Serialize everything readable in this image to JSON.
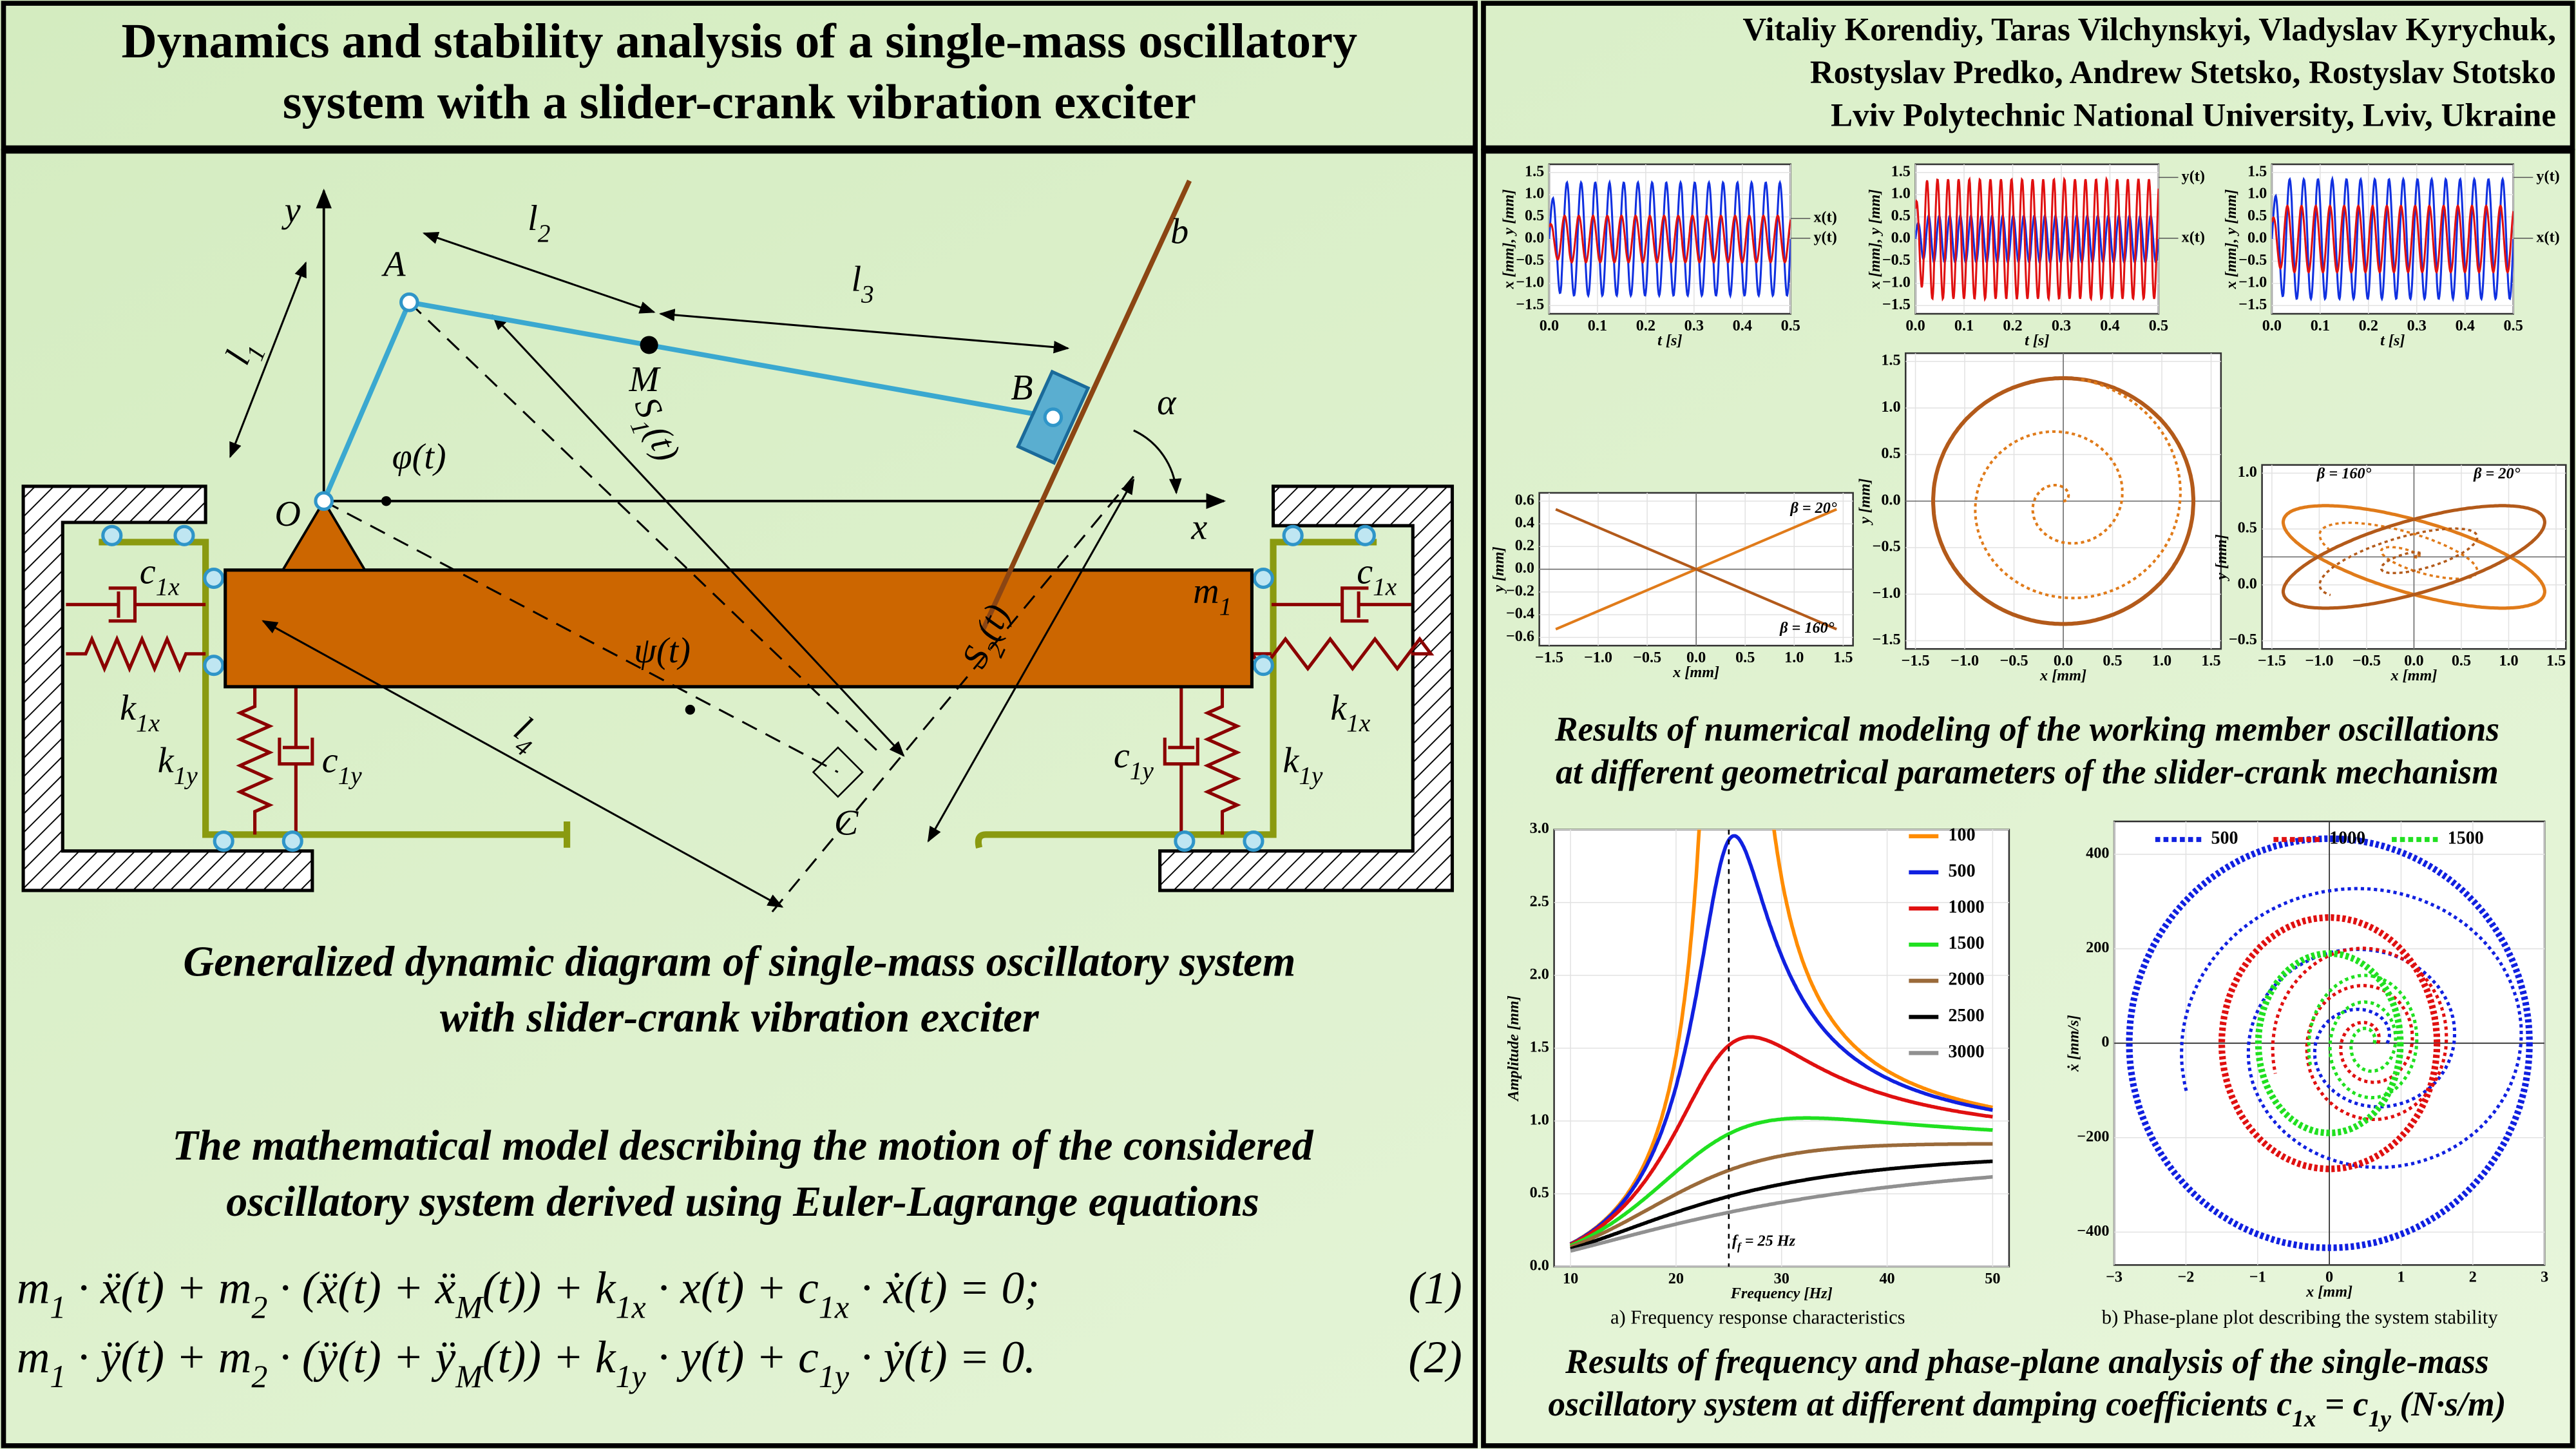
{
  "header": {
    "title": [
      "Dynamics and stability analysis of a single-mass oscillatory",
      "system with a slider-crank vibration exciter"
    ],
    "authors": [
      "Vitaliy Korendiy, Taras Vilchynskyi, Vladyslav Kyrychuk,",
      "Rostyslav Predko, Andrew Stetsko, Rostyslav Stotsko",
      "Lviv Polytechnic National University, Lviv, Ukraine"
    ]
  },
  "diagram": {
    "labels": [
      {
        "t": "y"
      },
      {
        "t": "x"
      },
      {
        "t": "O"
      },
      {
        "t": "A"
      },
      {
        "t": "M"
      },
      {
        "t": "B"
      },
      {
        "t": "b"
      },
      {
        "t": "α"
      },
      {
        "t": "φ(t)"
      },
      {
        "t": "l",
        "sub": "1"
      },
      {
        "t": "l",
        "sub": "2"
      },
      {
        "t": "l",
        "sub": "3"
      },
      {
        "t": "S",
        "sub": "1"
      },
      {
        "t": "S",
        "sub": "2"
      },
      {
        "t": "ψ(t)"
      },
      {
        "t": "l",
        "sub": "4"
      },
      {
        "t": "C"
      },
      {
        "t": "m",
        "sub": "1"
      },
      {
        "t": "c",
        "sub": "1x"
      },
      {
        "t": "k",
        "sub": "1x"
      },
      {
        "t": "k",
        "sub": "1y"
      },
      {
        "t": "c",
        "sub": "1y"
      },
      {
        "t": "c",
        "sub": "1x"
      },
      {
        "t": "k",
        "sub": "1x"
      },
      {
        "t": "c",
        "sub": "1y"
      },
      {
        "t": "k",
        "sub": "1y"
      }
    ],
    "s_suffix": "(t)",
    "caption": [
      "Generalized dynamic diagram of single-mass oscillatory system",
      "with slider-crank vibration exciter"
    ]
  },
  "model": {
    "caption": [
      "The mathematical model describing the motion of the considered",
      "oscillatory system derived using Euler-Lagrange equations"
    ],
    "equations": [
      {
        "parts": [
          {
            "t": "m",
            "sub": "1"
          },
          {
            "t": " · ẍ(t) + m",
            "sub": "2"
          },
          {
            "t": " · (ẍ(t) + ẍ",
            "sub": "M"
          },
          {
            "t": "(t)) + k",
            "sub": "1x"
          },
          {
            "t": " · x(t) + c",
            "sub": "1x"
          },
          {
            "t": " · ẋ(t) = 0;"
          }
        ],
        "number": "(1)"
      },
      {
        "parts": [
          {
            "t": "m",
            "sub": "1"
          },
          {
            "t": " · ÿ(t) + m",
            "sub": "2"
          },
          {
            "t": " · (ÿ(t) + ÿ",
            "sub": "M"
          },
          {
            "t": "(t)) + k",
            "sub": "1y"
          },
          {
            "t": " · y(t) + c",
            "sub": "1y"
          },
          {
            "t": " · ẏ(t) = 0."
          }
        ],
        "number": "(2)"
      }
    ]
  },
  "results": {
    "time_plots": [
      {
        "ylabel": "x [mm], y [mm]",
        "xlabel": "t [s]",
        "yticks": [
          "−1.5",
          "−1.0",
          "−0.5",
          "0.0",
          "0.5",
          "1.0",
          "1.5"
        ],
        "xticks": [
          "0.0",
          "0.1",
          "0.2",
          "0.3",
          "0.4",
          "0.5"
        ],
        "legend": [
          "x(t)",
          "y(t)"
        ]
      },
      {
        "ylabel": "x [mm], y [mm]",
        "xlabel": "t [s]",
        "yticks": [
          "−1.5",
          "−1.0",
          "−0.5",
          "0.0",
          "0.5",
          "1.0",
          "1.5"
        ],
        "xticks": [
          "0.0",
          "0.1",
          "0.2",
          "0.3",
          "0.4",
          "0.5"
        ],
        "legend": [
          "y(t)",
          "x(t)"
        ]
      },
      {
        "ylabel": "x [mm], y [mm]",
        "xlabel": "t [s]",
        "yticks": [
          "−1.5",
          "−1.0",
          "−0.5",
          "0.0",
          "0.5",
          "1.0",
          "1.5"
        ],
        "xticks": [
          "0.0",
          "0.1",
          "0.2",
          "0.3",
          "0.4",
          "0.5"
        ],
        "legend": [
          "y(t)",
          "x(t)"
        ]
      }
    ],
    "orbit_plots": [
      {
        "ylabel": "y [mm]",
        "xlabel": "x [mm]",
        "yticks": [
          "−0.6",
          "−0.4",
          "−0.2",
          "0.0",
          "0.2",
          "0.4",
          "0.6"
        ],
        "xticks": [
          "−1.5",
          "−1.0",
          "−0.5",
          "0.0",
          "0.5",
          "1.0",
          "1.5"
        ],
        "notes": [
          "β = 20°",
          "β = 160°"
        ]
      },
      {
        "ylabel": "y [mm]",
        "xlabel": "x [mm]",
        "yticks": [
          "−1.5",
          "−1.0",
          "−0.5",
          "0.0",
          "0.5",
          "1.0",
          "1.5"
        ],
        "xticks": [
          "−1.5",
          "−1.0",
          "−0.5",
          "0.0",
          "0.5",
          "1.0",
          "1.5"
        ],
        "notes": []
      },
      {
        "ylabel": "y [mm]",
        "xlabel": "x [mm]",
        "yticks": [
          "−0.5",
          "0.0",
          "0.5",
          "1.0"
        ],
        "xticks": [
          "−1.5",
          "−1.0",
          "−0.5",
          "0.0",
          "0.5",
          "1.0",
          "1.5"
        ],
        "notes": [
          "β = 160°",
          "β = 20°"
        ]
      }
    ],
    "caption": [
      "Results of numerical modeling of the working member oscillations",
      "at different geometrical parameters of the slider-crank mechanism"
    ]
  },
  "analysis": {
    "frequency": {
      "ylabel": "Amplitude [mm]",
      "xlabel": "Frequency [Hz]",
      "yticks": [
        "0.0",
        "0.5",
        "1.0",
        "1.5",
        "2.0",
        "2.5",
        "3.0"
      ],
      "xticks": [
        "10",
        "20",
        "30",
        "40",
        "50"
      ],
      "legend": [
        "100",
        "500",
        "1000",
        "1500",
        "2000",
        "2500",
        "3000"
      ],
      "annotation": {
        "t": "f",
        "sub": "f",
        "rest": " = 25 Hz"
      },
      "subcaption": "a) Frequency response characteristics"
    },
    "phase": {
      "ylabel": "ẋ [mm/s]",
      "xlabel": "x [mm]",
      "yticks": [
        "−400",
        "−200",
        "0",
        "200",
        "400"
      ],
      "xticks": [
        "−3",
        "−2",
        "−1",
        "0",
        "1",
        "2",
        "3"
      ],
      "legend": [
        "500",
        "1000",
        "1500"
      ],
      "subcaption": "b) Phase-plane plot describing the system stability"
    },
    "caption": [
      [
        {
          "t": "Results of frequency and phase-plane analysis of the single-mass"
        }
      ],
      [
        {
          "t": "oscillatory system at different damping coefficients c",
          "sub": "1x"
        },
        {
          "t": " = c",
          "sub": "1y"
        },
        {
          "t": " (N·s/m)"
        }
      ]
    ]
  }
}
